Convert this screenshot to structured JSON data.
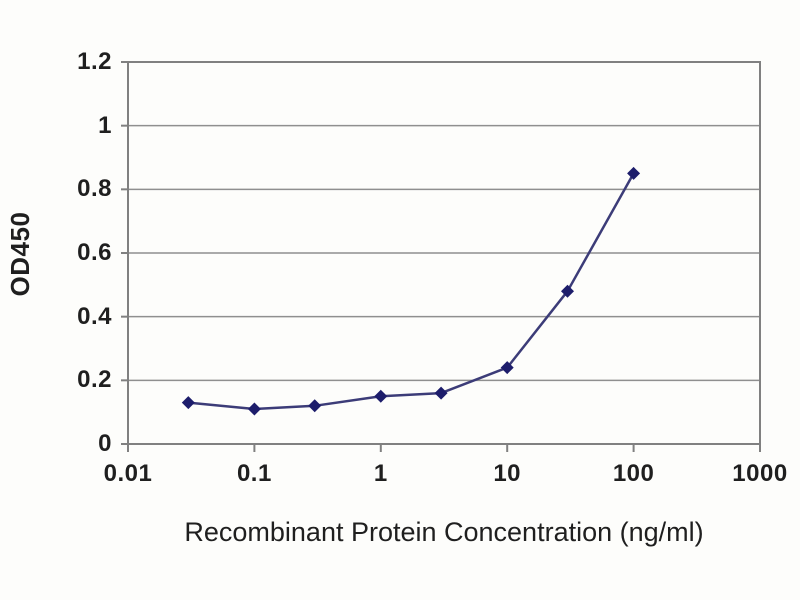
{
  "chart_data": {
    "type": "line",
    "x": [
      0.03,
      0.1,
      0.3,
      1,
      3,
      10,
      30,
      100
    ],
    "y": [
      0.13,
      0.11,
      0.12,
      0.15,
      0.16,
      0.24,
      0.48,
      0.85
    ],
    "xlabel": "Recombinant Protein Concentration (ng/ml)",
    "ylabel": "OD450",
    "x_scale": "log",
    "xlim": [
      0.01,
      1000
    ],
    "ylim": [
      0,
      1.2
    ],
    "xticks": [
      0.01,
      0.1,
      1,
      10,
      100,
      1000
    ],
    "xtick_labels": [
      "0.01",
      "0.1",
      "1",
      "10",
      "100",
      "1000"
    ],
    "yticks": [
      0,
      0.2,
      0.4,
      0.6,
      0.8,
      1,
      1.2
    ],
    "ytick_labels": [
      "0",
      "0.2",
      "0.4",
      "0.6",
      "0.8",
      "1",
      "1.2"
    ],
    "grid": true,
    "legend": false,
    "marker": "diamond",
    "colors": {
      "line": "#3c3c78",
      "marker": "#1d1d6b",
      "grid": "#8f8f8f",
      "frame": "#808080",
      "text": "#1f1f1f",
      "background": "#fdfdfb"
    }
  }
}
